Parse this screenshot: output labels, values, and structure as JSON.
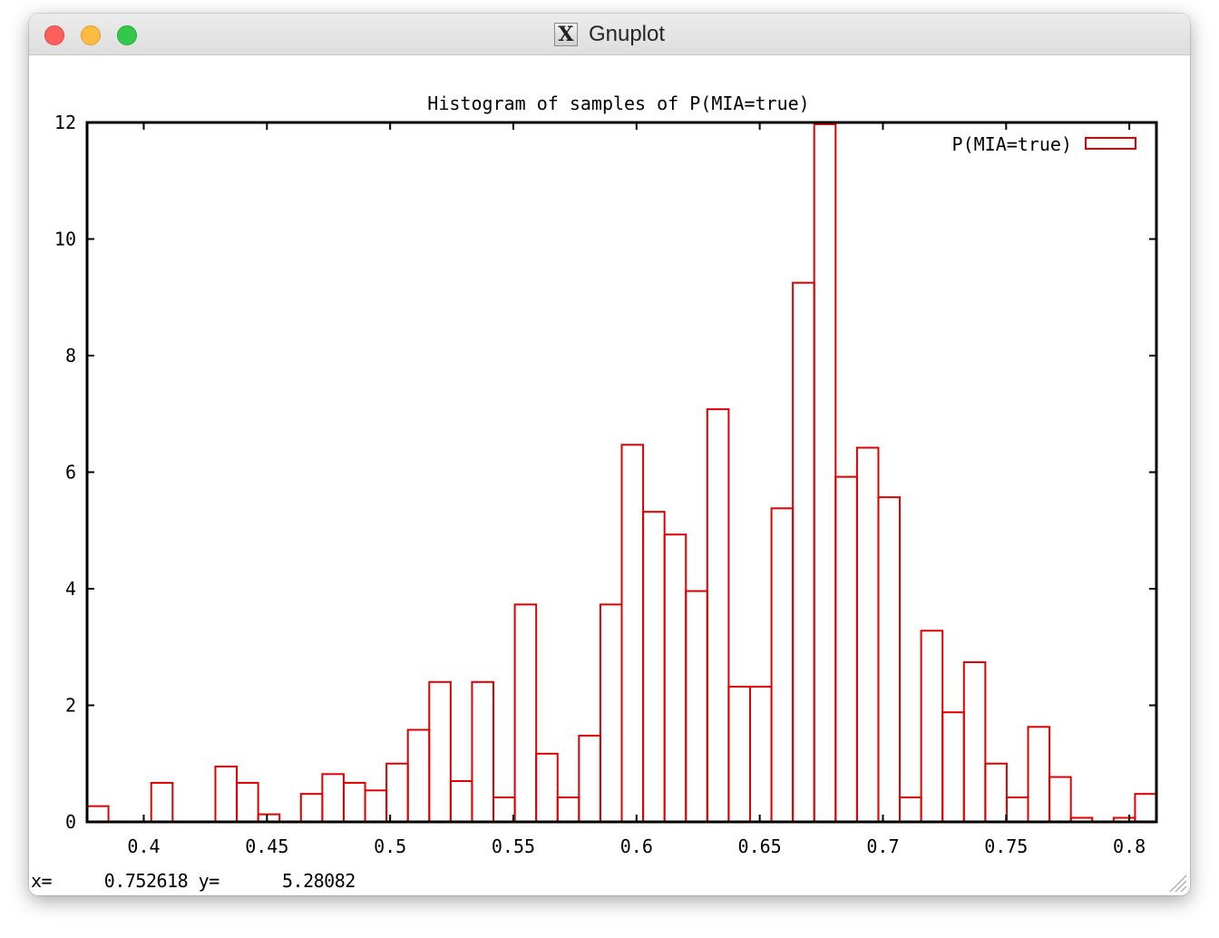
{
  "window": {
    "title": "Gnuplot",
    "app_icon": "x11-icon"
  },
  "status_bar": {
    "text": "x=     0.752618 y=      5.28082"
  },
  "colors": {
    "series": "#e00000",
    "axis": "#000000"
  },
  "chart_data": {
    "type": "bar",
    "title": "Histogram of samples of P(MIA=true)",
    "xlabel": "",
    "ylabel": "",
    "xlim": [
      0.377,
      0.811
    ],
    "ylim": [
      0,
      12
    ],
    "bin_width": 0.00868,
    "xticks": [
      0.4,
      0.45,
      0.5,
      0.55,
      0.6,
      0.65,
      0.7,
      0.75,
      0.8
    ],
    "xtick_labels": [
      "0.4",
      "0.45",
      "0.5",
      "0.55",
      "0.6",
      "0.65",
      "0.7",
      "0.75",
      "0.8"
    ],
    "yticks": [
      0,
      2,
      4,
      6,
      8,
      10,
      12
    ],
    "ytick_labels": [
      "0",
      "2",
      "4",
      "6",
      "8",
      "10",
      "12"
    ],
    "legend": {
      "position": "top-right",
      "entries": [
        "P(MIA=true)"
      ]
    },
    "grid": false,
    "series": [
      {
        "name": "P(MIA=true)",
        "values": [
          0.27,
          0,
          0,
          0.67,
          0,
          0,
          0.95,
          0.67,
          0.13,
          0,
          0.48,
          0.82,
          0.67,
          0.54,
          1.0,
          1.58,
          2.4,
          0.7,
          2.4,
          0.42,
          3.73,
          1.17,
          0.42,
          1.48,
          3.73,
          6.47,
          5.32,
          4.93,
          3.96,
          7.08,
          2.32,
          2.32,
          5.38,
          9.25,
          11.97,
          5.92,
          6.42,
          5.57,
          0.42,
          3.28,
          1.88,
          2.74,
          1.0,
          0.42,
          1.63,
          0.77,
          0.07,
          0,
          0.07,
          0.48
        ]
      }
    ]
  }
}
